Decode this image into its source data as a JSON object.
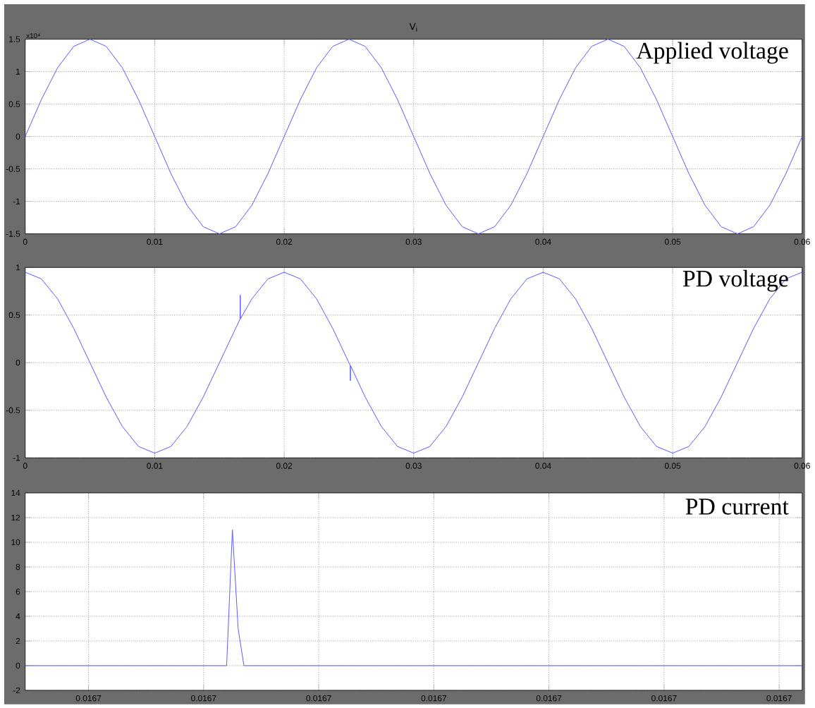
{
  "chart_data": [
    {
      "type": "line",
      "title": "V$_{i}$",
      "annotations": [
        "x10⁴",
        "Applied voltage"
      ],
      "series": [
        {
          "color": "#5a5aff",
          "x": [
            0,
            0.00125,
            0.0025,
            0.00375,
            0.005,
            0.00625,
            0.0075,
            0.00875,
            0.01,
            0.01125,
            0.0125,
            0.01375,
            0.015,
            0.01625,
            0.0175,
            0.01875,
            0.02,
            0.02125,
            0.0225,
            0.02375,
            0.025,
            0.02625,
            0.0275,
            0.02875,
            0.03,
            0.03125,
            0.0325,
            0.03375,
            0.035,
            0.03625,
            0.0375,
            0.03875,
            0.04,
            0.04125,
            0.0425,
            0.04375,
            0.045,
            0.04625,
            0.0475,
            0.04875,
            0.05,
            0.05125,
            0.0525,
            0.05375,
            0.055,
            0.05625,
            0.0575,
            0.05875,
            0.06
          ],
          "values": [
            0,
            0.57,
            1.06,
            1.39,
            1.5,
            1.39,
            1.06,
            0.57,
            0,
            -0.57,
            -1.06,
            -1.39,
            -1.5,
            -1.39,
            -1.06,
            -0.57,
            0,
            0.57,
            1.06,
            1.39,
            1.5,
            1.39,
            1.06,
            0.57,
            0,
            -0.57,
            -1.06,
            -1.39,
            -1.5,
            -1.39,
            -1.06,
            -0.57,
            0,
            0.57,
            1.06,
            1.39,
            1.5,
            1.39,
            1.06,
            0.57,
            0,
            -0.57,
            -1.06,
            -1.39,
            -1.5,
            -1.39,
            -1.06,
            -0.57,
            0
          ]
        }
      ],
      "xlim": [
        0,
        0.06
      ],
      "ylim": [
        -1.5,
        1.5
      ],
      "xticks": [
        0,
        0.01,
        0.02,
        0.03,
        0.04,
        0.05,
        0.06
      ],
      "yticks": [
        -1.5,
        -1,
        -0.5,
        0,
        0.5,
        1,
        1.5
      ],
      "grid": true
    },
    {
      "type": "line",
      "annotations": [
        "PD voltage"
      ],
      "series": [
        {
          "color": "#5a5aff",
          "x": [
            0,
            0.00125,
            0.0025,
            0.00375,
            0.005,
            0.00625,
            0.0075,
            0.00875,
            0.01,
            0.01125,
            0.0125,
            0.01375,
            0.015,
            0.01625,
            0.0166,
            0.01661,
            0.01662,
            0.0175,
            0.01875,
            0.02,
            0.02125,
            0.0225,
            0.02375,
            0.0251,
            0.02511,
            0.02512,
            0.02625,
            0.0275,
            0.02875,
            0.03,
            0.03125,
            0.0325,
            0.03375,
            0.035,
            0.03625,
            0.0375,
            0.03875,
            0.04,
            0.04125,
            0.0425,
            0.04375,
            0.045,
            0.04625,
            0.0475,
            0.04875,
            0.05,
            0.05125,
            0.0525,
            0.05375,
            0.055,
            0.05625,
            0.0575,
            0.05875,
            0.06
          ],
          "values": [
            0.95,
            0.88,
            0.67,
            0.36,
            0,
            -0.36,
            -0.67,
            -0.88,
            -0.95,
            -0.88,
            -0.67,
            -0.36,
            0,
            0.36,
            0.46,
            0.71,
            0.46,
            0.67,
            0.88,
            0.95,
            0.88,
            0.67,
            0.36,
            -0.03,
            -0.19,
            -0.03,
            -0.36,
            -0.67,
            -0.88,
            -0.95,
            -0.88,
            -0.67,
            -0.36,
            0,
            0.36,
            0.67,
            0.88,
            0.95,
            0.88,
            0.67,
            0.36,
            0,
            -0.36,
            -0.67,
            -0.88,
            -0.95,
            -0.88,
            -0.67,
            -0.36,
            0,
            0.36,
            0.67,
            0.88,
            0.95
          ]
        }
      ],
      "xlim": [
        0,
        0.06
      ],
      "ylim": [
        -1,
        1
      ],
      "xticks": [
        0,
        0.01,
        0.02,
        0.03,
        0.04,
        0.05,
        0.06
      ],
      "yticks": [
        -1,
        -0.5,
        0,
        0.5,
        1
      ],
      "grid": true
    },
    {
      "type": "line",
      "annotations": [
        "PD current"
      ],
      "categories": [
        null,
        null,
        null,
        null,
        null,
        null,
        null,
        null,
        null,
        null,
        null,
        "0.0167",
        null,
        null,
        null,
        null,
        null,
        null,
        null,
        null,
        null,
        null,
        null,
        null,
        null,
        null,
        null,
        null,
        null,
        null,
        null,
        "0.0167",
        null,
        null,
        null,
        null,
        null,
        null,
        null,
        null,
        null,
        null,
        null,
        null,
        null,
        null,
        null,
        null,
        null,
        null,
        null,
        "0.0167",
        null,
        null,
        null,
        null,
        null,
        null,
        null,
        null,
        null,
        null,
        null,
        null,
        null,
        null,
        null,
        null,
        null,
        null,
        null,
        "0.0167",
        null,
        null,
        null,
        null,
        null,
        null,
        null,
        null,
        null,
        null,
        null,
        null,
        null,
        null,
        null,
        null,
        null,
        null,
        null,
        "0.0167",
        null,
        null,
        null,
        null,
        null,
        null,
        null,
        null,
        null,
        null,
        null,
        null,
        null,
        null,
        null,
        null,
        null,
        null,
        null,
        "0.0167",
        null,
        null,
        null,
        null,
        null,
        null,
        null,
        null,
        null,
        null,
        null,
        null,
        null,
        null,
        null,
        null,
        null,
        null,
        null,
        "0.0167",
        null,
        null,
        null,
        null
      ],
      "series": [
        {
          "color": "#5a5aff",
          "values": [
            0,
            0,
            0,
            0,
            0,
            0,
            0,
            0,
            0,
            0,
            0,
            0,
            0,
            0,
            0,
            0,
            0,
            0,
            0,
            0,
            0,
            0,
            0,
            0,
            0,
            0,
            0,
            0,
            0,
            0,
            0,
            0,
            0,
            0,
            0,
            0,
            11,
            3,
            0,
            0,
            0,
            0,
            0,
            0,
            0,
            0,
            0,
            0,
            0,
            0,
            0,
            0,
            0,
            0,
            0,
            0,
            0,
            0,
            0,
            0,
            0,
            0,
            0,
            0,
            0,
            0,
            0,
            0,
            0,
            0,
            0,
            0,
            0,
            0,
            0,
            0,
            0,
            0,
            0,
            0,
            0,
            0,
            0,
            0,
            0,
            0,
            0,
            0,
            0,
            0,
            0,
            0,
            0,
            0,
            0,
            0,
            0,
            0,
            0,
            0,
            0,
            0,
            0,
            0,
            0,
            0,
            0,
            0,
            0,
            0,
            0,
            0,
            0,
            0,
            0,
            0,
            0,
            0,
            0,
            0,
            0,
            0,
            0,
            0,
            0,
            0,
            0,
            0,
            0,
            0,
            0,
            0,
            0,
            0,
            0,
            0
          ]
        }
      ],
      "ylim": [
        -2,
        14
      ],
      "yticks": [
        -2,
        0,
        2,
        4,
        6,
        8,
        10,
        12,
        14
      ],
      "grid": true
    }
  ]
}
